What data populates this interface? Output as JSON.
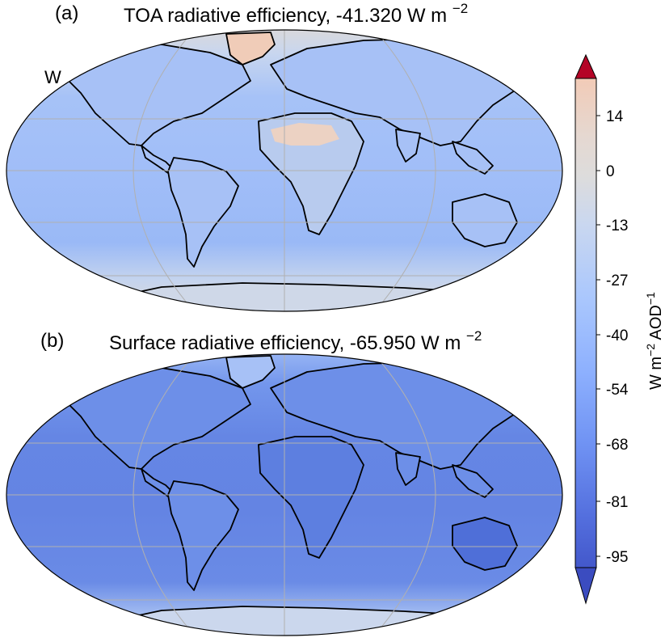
{
  "panels": [
    {
      "label": "(a)",
      "title": "TOA radiative efficiency, -41.320 W m",
      "title_sup": "−2"
    },
    {
      "label": "(b)",
      "title": "Surface radiative efficiency, -65.950 W m",
      "title_sup": "−2"
    }
  ],
  "stray_text": "W",
  "colorbar": {
    "ticks": [
      "14",
      "0",
      "-13",
      "-27",
      "-40",
      "-54",
      "-68",
      "-81",
      "-95"
    ],
    "label_main": "W m",
    "label_sup1": "−2",
    "label_mid": " AOD",
    "label_sup2": "−1",
    "colormap": "coolwarm",
    "extend": "both",
    "max_color": "#b40426",
    "min_color": "#3b4cc0"
  },
  "colors": {
    "ocean_toa": "#a9c3f7",
    "ocean_surface": "#6a8de9",
    "land_outline": "#000000",
    "gridline": "#b0b0b0"
  }
}
